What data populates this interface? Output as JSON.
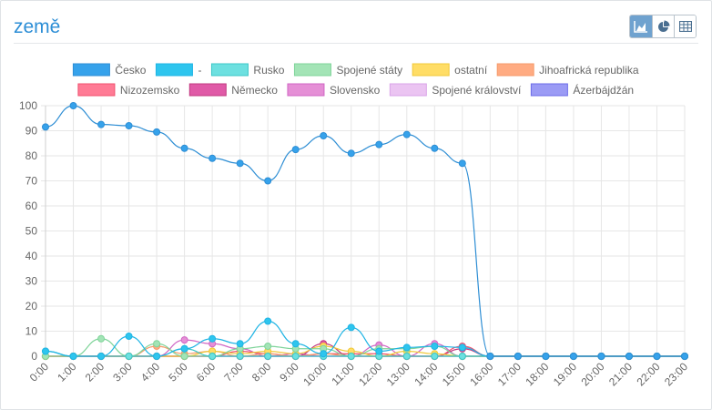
{
  "panel": {
    "title": "země",
    "view_buttons": [
      {
        "icon": "area-chart-icon",
        "active": true
      },
      {
        "icon": "pie-chart-icon",
        "active": false
      },
      {
        "icon": "table-icon",
        "active": false
      }
    ]
  },
  "chart_data": {
    "type": "line",
    "title": "",
    "xlabel": "",
    "ylabel": "",
    "ylim": [
      0,
      100
    ],
    "yticks": [
      0,
      10,
      20,
      30,
      40,
      50,
      60,
      70,
      80,
      90,
      100
    ],
    "grid": true,
    "legend_position": "top",
    "categories": [
      "0:00",
      "1:00",
      "2:00",
      "3:00",
      "4:00",
      "5:00",
      "6:00",
      "7:00",
      "8:00",
      "9:00",
      "10:00",
      "11:00",
      "12:00",
      "13:00",
      "14:00",
      "15:00",
      "16:00",
      "17:00",
      "18:00",
      "19:00",
      "20:00",
      "21:00",
      "22:00",
      "23:00"
    ],
    "series": [
      {
        "name": "Česko",
        "color": "#2e8ed4",
        "fill": "#36a2eb",
        "values": [
          91.5,
          100,
          92.5,
          92,
          89.5,
          83,
          79,
          77,
          70,
          82.5,
          88,
          81,
          84.5,
          88.5,
          83,
          77,
          0,
          0,
          0,
          0,
          0,
          0,
          0,
          0
        ]
      },
      {
        "name": "-",
        "color": "#1fb4e4",
        "fill": "#2ec5ee",
        "values": [
          2,
          0,
          0,
          8,
          0,
          3,
          7,
          5,
          14,
          5,
          1,
          11.5,
          2,
          3.5,
          4,
          3.5,
          0,
          0,
          0,
          0,
          0,
          0,
          0,
          0
        ]
      },
      {
        "name": "Rusko",
        "color": "#3cc7c7",
        "fill": "#6de0e0",
        "values": [
          2,
          0,
          0,
          0,
          0,
          3,
          0,
          0,
          0,
          0,
          0,
          0,
          0,
          0,
          0,
          0,
          0,
          0,
          0,
          0,
          0,
          0,
          0,
          0
        ]
      },
      {
        "name": "Spojené státy",
        "color": "#7fd49a",
        "fill": "#a3e4b6",
        "values": [
          0,
          0,
          7,
          0,
          5,
          0,
          0,
          3,
          4,
          3,
          3,
          0,
          3,
          3,
          4,
          0,
          0,
          0,
          0,
          0,
          0,
          0,
          0,
          0
        ]
      },
      {
        "name": "ostatní",
        "color": "#f0c93a",
        "fill": "#ffdd66",
        "values": [
          0,
          0,
          0,
          0,
          0,
          0,
          2,
          1,
          2,
          1,
          4,
          2,
          0,
          2,
          1,
          0,
          0,
          0,
          0,
          0,
          0,
          0,
          0,
          0
        ]
      },
      {
        "name": "Jihoafrická republika",
        "color": "#f59a6a",
        "fill": "#ffab82",
        "values": [
          0,
          0,
          0,
          0,
          4,
          1,
          2,
          0,
          1,
          0,
          1,
          0,
          0,
          0,
          0,
          0,
          0,
          0,
          0,
          0,
          0,
          0,
          0,
          0
        ]
      },
      {
        "name": "Nizozemsko",
        "color": "#f0506e",
        "fill": "#ff7b95",
        "values": [
          0,
          0,
          0,
          0,
          0,
          0,
          0,
          2,
          1,
          0,
          1,
          1,
          1,
          0,
          0,
          4,
          0,
          0,
          0,
          0,
          0,
          0,
          0,
          0
        ]
      },
      {
        "name": "Německo",
        "color": "#c0397f",
        "fill": "#e05aa7",
        "values": [
          0,
          0,
          0,
          0,
          0,
          0,
          0,
          0,
          0,
          0,
          5,
          0,
          0,
          0,
          0,
          3,
          0,
          0,
          0,
          0,
          0,
          0,
          0,
          0
        ]
      },
      {
        "name": "Slovensko",
        "color": "#d066c4",
        "fill": "#e58fd6",
        "values": [
          0,
          0,
          0,
          0,
          0,
          6.5,
          5,
          3,
          0,
          1,
          0,
          0,
          4.5,
          0,
          5,
          0,
          0,
          0,
          0,
          0,
          0,
          0,
          0,
          0
        ]
      },
      {
        "name": "Spojené království",
        "color": "#d9a3e8",
        "fill": "#ebc4f2",
        "values": [
          0,
          0,
          0,
          0,
          0,
          0,
          0,
          0,
          0,
          0,
          0,
          0,
          0,
          0,
          0,
          0,
          0,
          0,
          0,
          0,
          0,
          0,
          0,
          0
        ]
      },
      {
        "name": "Ázerbájdžán",
        "color": "#6b6be8",
        "fill": "#9b9bf5",
        "values": [
          0,
          0,
          0,
          0,
          0,
          0,
          0,
          0,
          0,
          0,
          0,
          0,
          0,
          0,
          0,
          0,
          0,
          0,
          0,
          0,
          0,
          0,
          0,
          0
        ]
      }
    ]
  }
}
